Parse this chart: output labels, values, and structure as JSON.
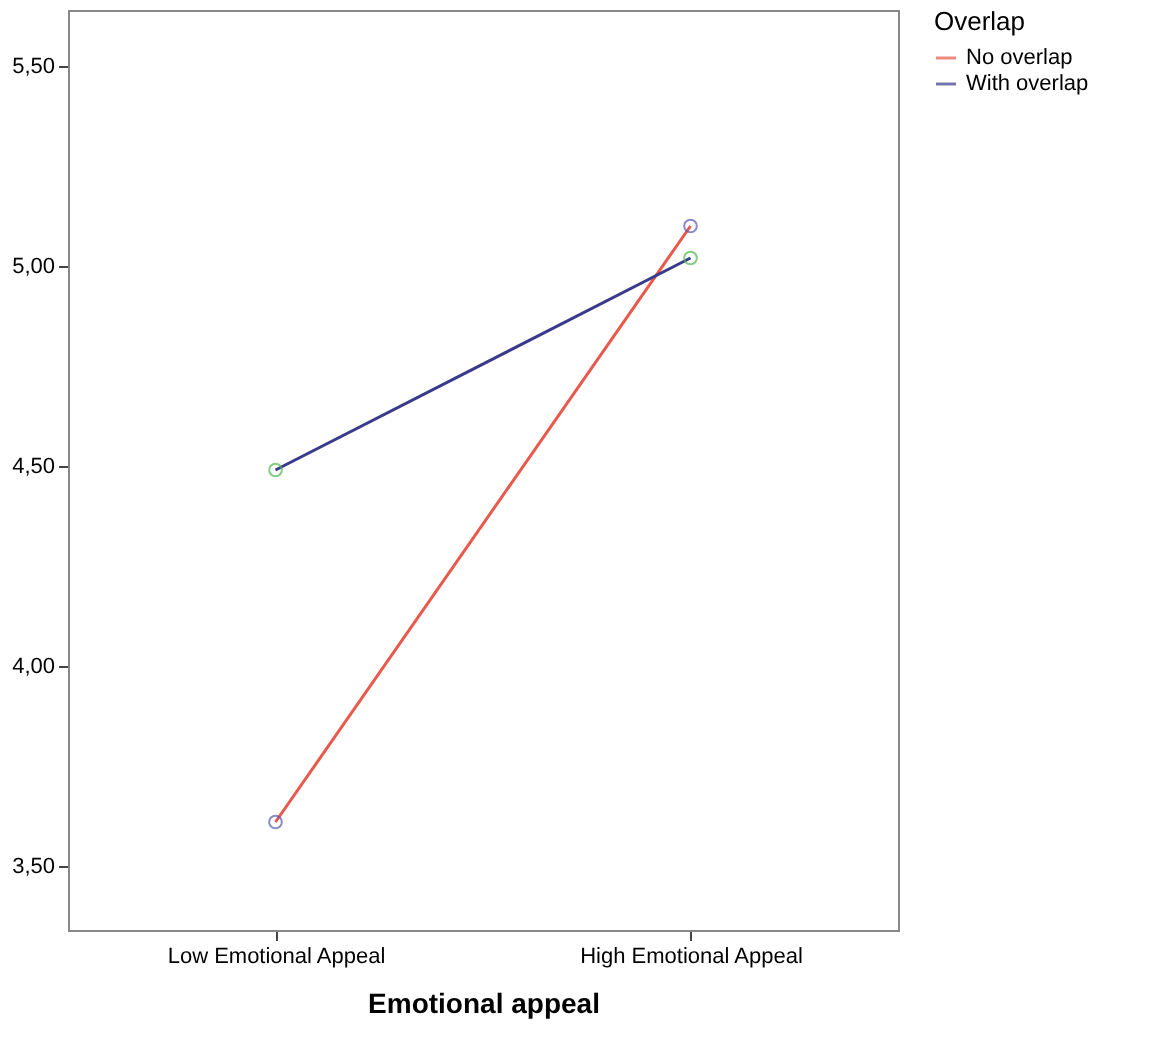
{
  "chart_data": {
    "type": "line",
    "xlabel": "Emotional appeal",
    "legend_title": "Overlap",
    "categories": [
      "Low Emotional Appeal",
      "High Emotional Appeal"
    ],
    "series": [
      {
        "name": "No overlap",
        "color": "#e8594b",
        "colors": [
          "#5a5ab4",
          "#5a5ab4"
        ],
        "values": [
          3.61,
          5.1
        ]
      },
      {
        "name": "With overlap",
        "color": "#3a3a8c",
        "colors": [
          "#4cb84c",
          "#4cb84c"
        ],
        "values": [
          4.49,
          5.02
        ]
      }
    ],
    "ylim": [
      3.34,
      5.64
    ],
    "yticks": [
      {
        "value": 3.5,
        "label": "3,50"
      },
      {
        "value": 4.0,
        "label": "4,00"
      },
      {
        "value": 4.5,
        "label": "4,50"
      },
      {
        "value": 5.0,
        "label": "5,00"
      },
      {
        "value": 5.5,
        "label": "5,50"
      }
    ],
    "grid": false,
    "legend": "top right",
    "marker": "circle",
    "line_style": "solid"
  }
}
